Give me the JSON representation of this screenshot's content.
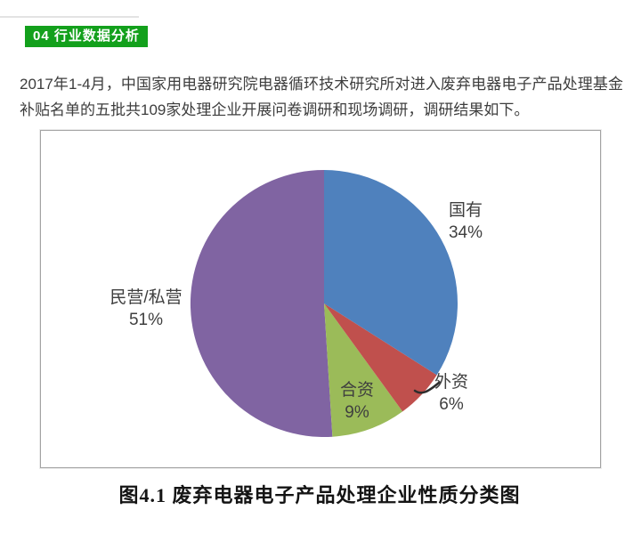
{
  "header": {
    "badge_label": "04 行业数据分析",
    "badge_color": "#13a01c"
  },
  "intro": {
    "text": "2017年1-4月，中国家用电器研究院电器循环技术研究所对进入废弃电器电子产品处理基金补贴名单的五批共109家处理企业开展问卷调研和现场调研，调研结果如下。"
  },
  "figure": {
    "caption": "图4.1 废弃电器电子产品处理企业性质分类图"
  },
  "chart_data": {
    "type": "pie",
    "title": "图4.1 废弃电器电子产品处理企业性质分类图",
    "start_angle_deg": -90,
    "direction": "clockwise",
    "legend_position": "none",
    "total_companies_mentioned": 109,
    "slices": [
      {
        "label": "国有",
        "value": 34,
        "pct_label": "34%",
        "color": "#4f81bd"
      },
      {
        "label": "外资",
        "value": 6,
        "pct_label": "6%",
        "color": "#c0504d"
      },
      {
        "label": "合资",
        "value": 9,
        "pct_label": "9%",
        "color": "#9bbb59"
      },
      {
        "label": "民营/私营",
        "value": 51,
        "pct_label": "51%",
        "color": "#8064a2"
      }
    ]
  }
}
